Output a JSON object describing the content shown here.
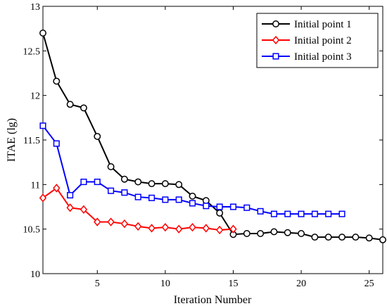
{
  "chart_data": {
    "type": "line",
    "xlabel": "Iteration Number",
    "ylabel": "ITAE (lg)",
    "xlim": [
      1,
      26
    ],
    "ylim": [
      10,
      13
    ],
    "xticks": [
      5,
      10,
      15,
      20,
      25
    ],
    "yticks": [
      10,
      10.5,
      11,
      11.5,
      12,
      12.5,
      13
    ],
    "xtick_labels": [
      "5",
      "10",
      "15",
      "20",
      "25"
    ],
    "ytick_labels": [
      "10",
      "10.5",
      "11",
      "11.5",
      "12",
      "12.5",
      "13"
    ],
    "grid": false,
    "legend_position": "top-right",
    "series": [
      {
        "name": "Initial point 1",
        "color": "#000000",
        "marker": "circle",
        "x": [
          1,
          2,
          3,
          4,
          5,
          6,
          7,
          8,
          9,
          10,
          11,
          12,
          13,
          14,
          15,
          16,
          17,
          18,
          19,
          20,
          21,
          22,
          23,
          24,
          25,
          26
        ],
        "y": [
          12.7,
          12.16,
          11.9,
          11.86,
          11.54,
          11.2,
          11.06,
          11.03,
          11.01,
          11.01,
          11.0,
          10.87,
          10.82,
          10.68,
          10.44,
          10.45,
          10.45,
          10.47,
          10.46,
          10.45,
          10.41,
          10.41,
          10.41,
          10.41,
          10.4,
          10.38
        ]
      },
      {
        "name": "Initial point 2",
        "color": "#ff0000",
        "marker": "diamond",
        "x": [
          1,
          2,
          3,
          4,
          5,
          6,
          7,
          8,
          9,
          10,
          11,
          12,
          13,
          14,
          15
        ],
        "y": [
          10.85,
          10.96,
          10.74,
          10.72,
          10.58,
          10.58,
          10.56,
          10.53,
          10.51,
          10.52,
          10.5,
          10.52,
          10.51,
          10.49,
          10.5
        ]
      },
      {
        "name": "Initial point 3",
        "color": "#0000ff",
        "marker": "square",
        "x": [
          1,
          2,
          3,
          4,
          5,
          6,
          7,
          8,
          9,
          10,
          11,
          12,
          13,
          14,
          15,
          16,
          17,
          18,
          19,
          20,
          21,
          22,
          23
        ],
        "y": [
          11.66,
          11.46,
          10.88,
          11.03,
          11.03,
          10.93,
          10.91,
          10.86,
          10.85,
          10.83,
          10.83,
          10.79,
          10.76,
          10.75,
          10.75,
          10.74,
          10.7,
          10.67,
          10.67,
          10.67,
          10.67,
          10.67,
          10.67
        ]
      }
    ]
  }
}
